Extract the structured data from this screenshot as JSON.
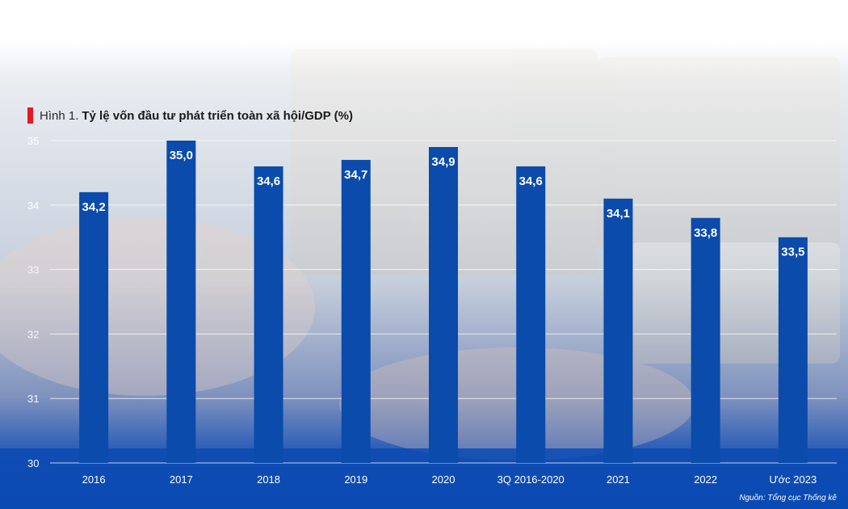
{
  "title_prefix": "Hình 1.",
  "title": "Tỷ lệ vốn đầu tư phát triển toàn xã hội/GDP (%)",
  "source": "Nguồn: Tổng cục Thống kê",
  "colors": {
    "bar": "#0a4bab",
    "accent": "#e21b23",
    "bottom_band": "#0b4ab3"
  },
  "chart_data": {
    "type": "bar",
    "title": "Tỷ lệ vốn đầu tư phát triển toàn xã hội/GDP (%)",
    "categories": [
      "2016",
      "2017",
      "2018",
      "2019",
      "2020",
      "3Q 2016-2020",
      "2021",
      "2022",
      "Ước 2023"
    ],
    "values": [
      34.2,
      35.0,
      34.6,
      34.7,
      34.9,
      34.6,
      34.1,
      33.8,
      33.5
    ],
    "value_labels": [
      "34,2",
      "35,0",
      "34,6",
      "34,7",
      "34,9",
      "34,6",
      "34,1",
      "33,8",
      "33,5"
    ],
    "ylim": [
      30,
      35
    ],
    "yticks": [
      "30",
      "31",
      "32",
      "33",
      "34",
      "35"
    ],
    "xlabel": "",
    "ylabel": "",
    "grid": true
  }
}
